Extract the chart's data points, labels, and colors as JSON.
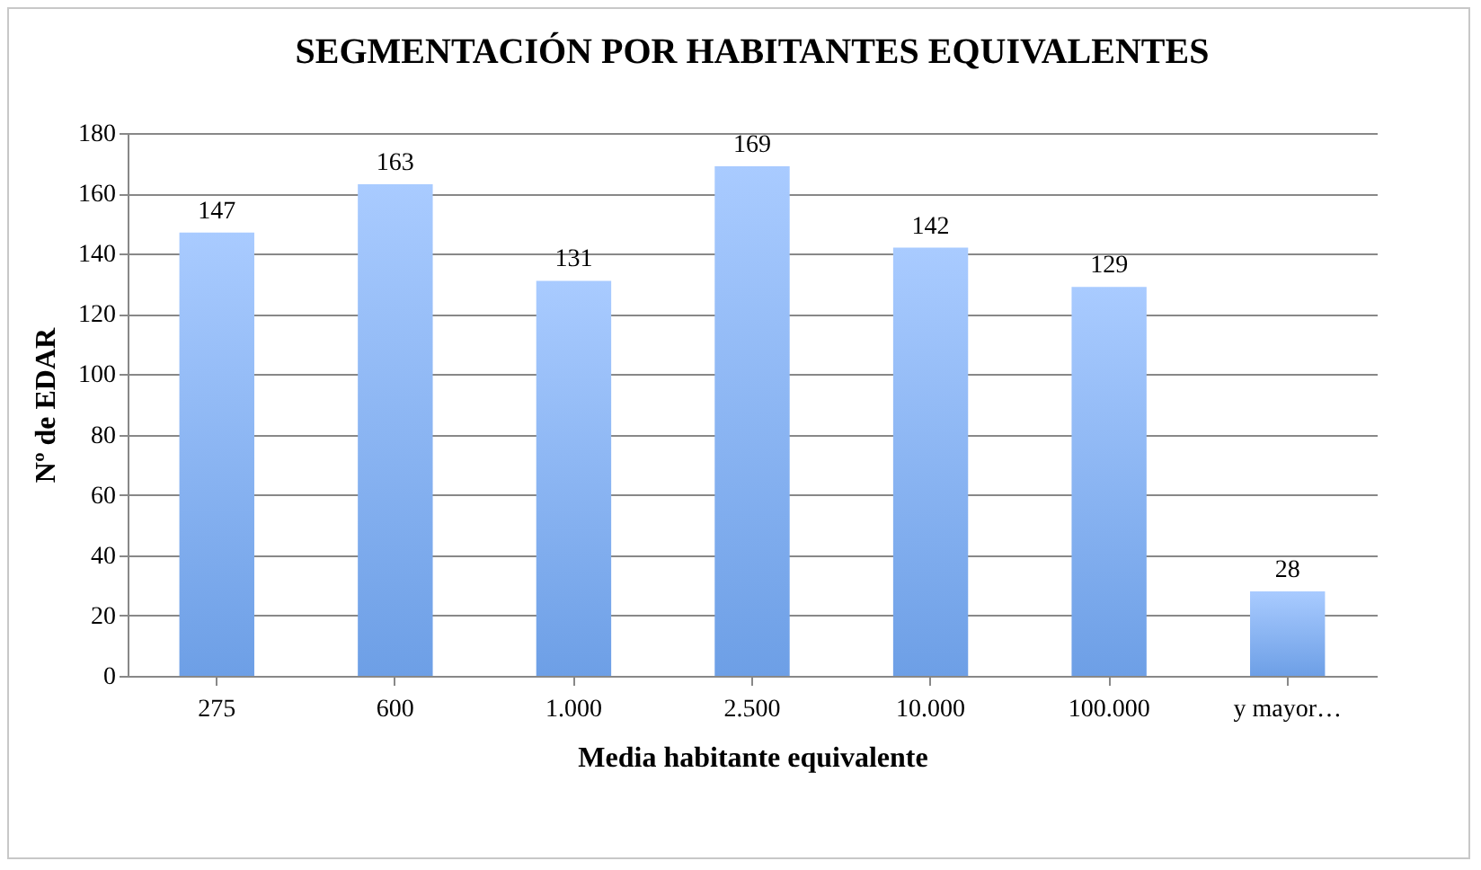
{
  "chart_data": {
    "type": "bar",
    "title": "SEGMENTACIÓN POR HABITANTES EQUIVALENTES",
    "xlabel": "Media habitante equivalente",
    "ylabel": "Nº de EDAR",
    "categories": [
      "275",
      "600",
      "1.000",
      "2.500",
      "10.000",
      "100.000",
      "y mayor…"
    ],
    "values": [
      147,
      163,
      131,
      169,
      142,
      129,
      28
    ],
    "color": "#6d9fe6",
    "ylim": [
      0,
      180
    ],
    "yticks": [
      0,
      20,
      40,
      60,
      80,
      100,
      120,
      140,
      160,
      180
    ],
    "grid": "y",
    "data_labels": true
  }
}
